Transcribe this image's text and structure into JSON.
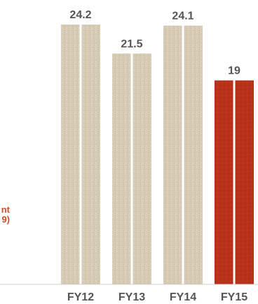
{
  "chart_data": {
    "type": "bar",
    "categories": [
      "FY12",
      "FY13",
      "FY14",
      "FY15"
    ],
    "values": [
      24.2,
      21.5,
      24.1,
      19
    ],
    "highlight_index": 3,
    "colors": {
      "bar": "#d8cdb8",
      "bar_dark": "#c2b59c",
      "highlight": "#b8321a",
      "highlight_dark": "#8f2412",
      "label": "#555555",
      "axis": "#bbbbbb"
    },
    "ylim": [
      0,
      24.2
    ],
    "grid": false,
    "title": "",
    "xlabel": "",
    "ylabel": ""
  },
  "side_note": {
    "line1": "nt",
    "line2": "9)"
  }
}
